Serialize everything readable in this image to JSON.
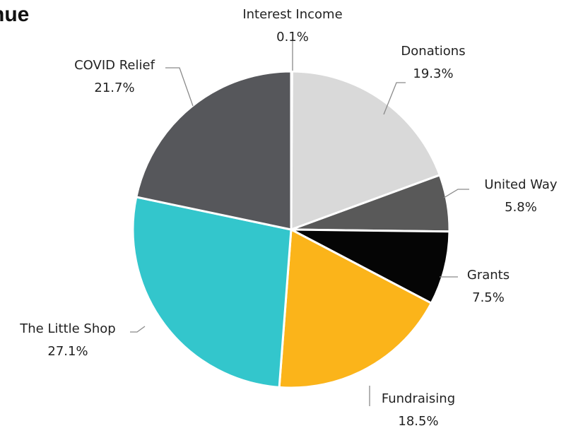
{
  "chart_data": {
    "type": "pie",
    "title": "nue",
    "categories": [
      "Interest Income",
      "Donations",
      "United Way",
      "Grants",
      "Fundraising",
      "The Little Shop",
      "COVID Relief"
    ],
    "values": [
      0.1,
      19.3,
      5.8,
      7.5,
      18.5,
      27.1,
      21.7
    ],
    "value_labels": [
      "0.1%",
      "19.3%",
      "5.8%",
      "7.5%",
      "18.5%",
      "27.1%",
      "21.7%"
    ],
    "colors": [
      "#d9d9d9",
      "#d9d9d9",
      "#595959",
      "#050505",
      "#fbb41a",
      "#33c6cc",
      "#56575b"
    ],
    "legend": "none",
    "data_labels": "outside-with-leader-lines"
  }
}
